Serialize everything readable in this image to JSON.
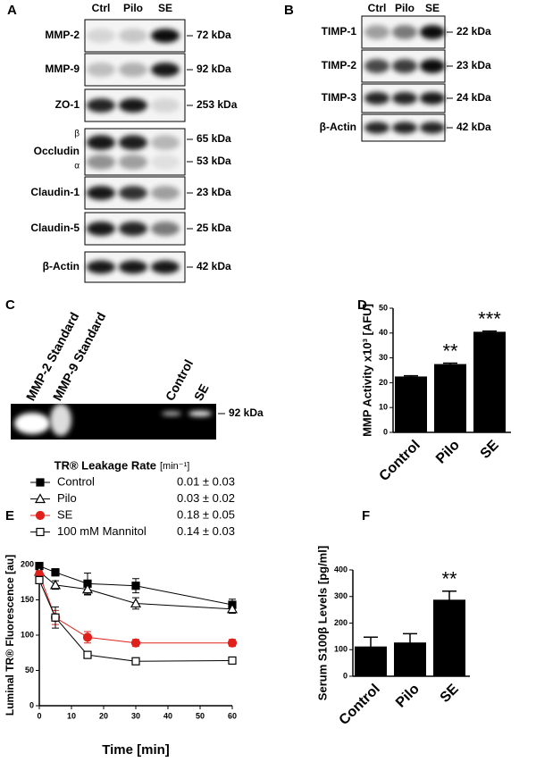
{
  "panels": {
    "a": {
      "label": "A",
      "lanes": [
        "Ctrl",
        "Pilo",
        "SE"
      ],
      "rows": [
        {
          "name": "MMP-2",
          "kda": [
            "72 kDa"
          ]
        },
        {
          "name": "MMP-9",
          "kda": [
            "92 kDa"
          ]
        },
        {
          "name": "ZO-1",
          "kda": [
            "253 kDa"
          ]
        },
        {
          "name": "Occludin",
          "subunits": [
            "β",
            "α"
          ],
          "kda": [
            "65 kDa",
            "53 kDa"
          ]
        },
        {
          "name": "Claudin-1",
          "kda": [
            "23 kDa"
          ]
        },
        {
          "name": "Claudin-5",
          "kda": [
            "25 kDa"
          ]
        },
        {
          "name": "β-Actin",
          "kda": [
            "42 kDa"
          ]
        }
      ]
    },
    "b": {
      "label": "B",
      "lanes": [
        "Ctrl",
        "Pilo",
        "SE"
      ],
      "rows": [
        {
          "name": "TIMP-1",
          "kda": [
            "22 kDa"
          ]
        },
        {
          "name": "TIMP-2",
          "kda": [
            "23 kDa"
          ]
        },
        {
          "name": "TIMP-3",
          "kda": [
            "24 kDa"
          ]
        },
        {
          "name": "β-Actin",
          "kda": [
            "42 kDa"
          ]
        }
      ]
    },
    "c": {
      "label": "C",
      "lanes": [
        "MMP-2 Standard",
        "MMP-9 Standard",
        "Control",
        "SE"
      ],
      "kda": "92 kDa"
    }
  },
  "chart_data": [
    {
      "type": "bar",
      "panel": "D",
      "ylabel": "MMP Activity x10³ [AFU]",
      "categories": [
        "Control",
        "Pilo",
        "SE"
      ],
      "values": [
        22.5,
        27.5,
        40.5
      ],
      "errors": [
        0.3,
        0.4,
        0.3
      ],
      "annotations": [
        {
          "index": 1,
          "text": "**"
        },
        {
          "index": 2,
          "text": "***"
        }
      ],
      "color": "#000000",
      "ylim": [
        0,
        50
      ],
      "yticks": [
        0,
        10,
        20,
        30,
        40,
        50
      ]
    },
    {
      "type": "line",
      "panel": "E",
      "legend_title": "TR® Leakage Rate",
      "legend_unit": "[min⁻¹]",
      "xlabel": "Time [min]",
      "ylabel": "Luminal TR® Fluorescence [au]",
      "x": [
        0,
        5,
        15,
        30,
        60
      ],
      "series": [
        {
          "name": "Control",
          "rate": "0.01 ± 0.03",
          "color": "#000000",
          "marker": "square",
          "filled": true,
          "values": [
            198,
            189,
            173,
            170,
            143
          ],
          "errors": [
            3,
            5,
            15,
            10,
            8
          ]
        },
        {
          "name": "Pilo",
          "rate": "0.03 ± 0.02",
          "color": "#000000",
          "marker": "triangle",
          "filled": false,
          "values": [
            190,
            171,
            165,
            145,
            137
          ],
          "errors": [
            3,
            6,
            8,
            8,
            6
          ]
        },
        {
          "name": "SE",
          "rate": "0.18 ± 0.05",
          "color": "#e0201b",
          "marker": "circle",
          "filled": true,
          "values": [
            186,
            125,
            97,
            89,
            89
          ],
          "errors": [
            5,
            10,
            8,
            5,
            5
          ]
        },
        {
          "name": "100 mM Mannitol",
          "rate": "0.14 ± 0.03",
          "color": "#000000",
          "marker": "square",
          "filled": false,
          "values": [
            178,
            125,
            72,
            63,
            64
          ],
          "errors": [
            5,
            15,
            3,
            3,
            3
          ]
        }
      ],
      "xlim": [
        0,
        60
      ],
      "xticks": [
        0,
        10,
        20,
        30,
        40,
        50,
        60
      ],
      "ylim": [
        0,
        200
      ],
      "yticks": [
        0,
        50,
        100,
        150,
        200
      ]
    },
    {
      "type": "bar",
      "panel": "F",
      "ylabel": "Serum S100β Levels [pg/ml]",
      "categories": [
        "Control",
        "Pilo",
        "SE"
      ],
      "values": [
        112,
        127,
        288
      ],
      "errors": [
        35,
        33,
        32
      ],
      "annotations": [
        {
          "index": 2,
          "text": "**"
        }
      ],
      "color": "#000000",
      "ylim": [
        0,
        400
      ],
      "yticks": [
        0,
        100,
        200,
        300,
        400
      ]
    }
  ]
}
